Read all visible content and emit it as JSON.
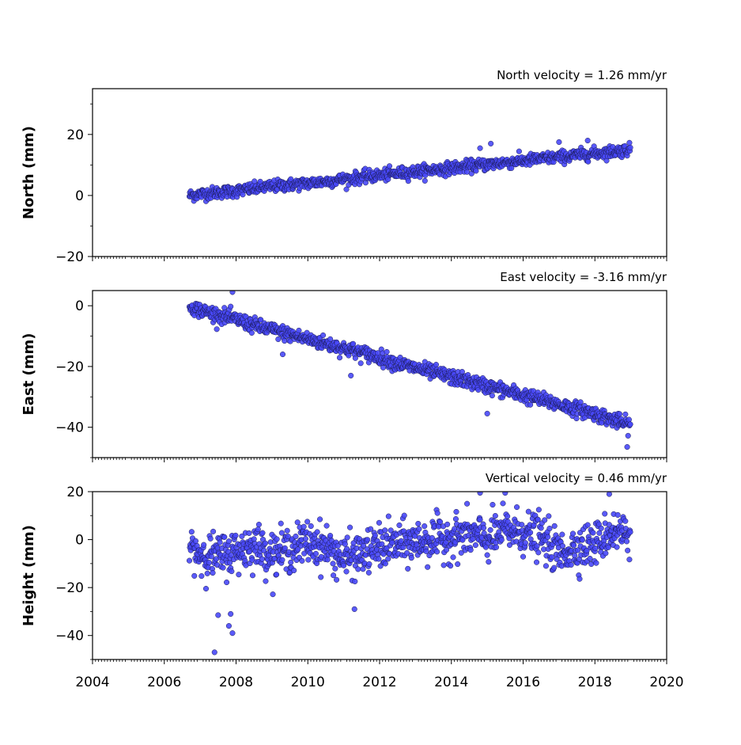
{
  "chart_data": [
    {
      "type": "scatter",
      "title": "North velocity = 1.26 mm/yr",
      "xlabel": "",
      "ylabel": "North (mm)",
      "xlim": [
        2004,
        2020
      ],
      "ylim": [
        -20,
        35
      ],
      "yticks": [
        -20,
        0,
        20
      ],
      "yticks_labels": [
        "−20",
        "0",
        "20"
      ],
      "series": [
        {
          "x": [
            2006.7,
            2007.0,
            2007.5,
            2008.0,
            2008.5,
            2009.0,
            2009.5,
            2010.0,
            2010.5,
            2011.0,
            2011.5,
            2012.0,
            2012.5,
            2013.0,
            2013.5,
            2014.0,
            2014.5,
            2015.0,
            2015.5,
            2016.0,
            2016.5,
            2017.0,
            2017.5,
            2018.0,
            2018.5,
            2019.0
          ],
          "y": [
            0.0,
            0.5,
            1.0,
            1.5,
            2.2,
            3.0,
            3.5,
            4.0,
            4.6,
            5.3,
            6.0,
            6.6,
            7.2,
            7.8,
            8.4,
            9.0,
            9.6,
            10.2,
            10.8,
            11.4,
            12.0,
            12.6,
            13.2,
            13.8,
            14.4,
            15.0
          ],
          "scatter": 1.3
        }
      ],
      "outliers": [
        {
          "x": 2014.8,
          "y": 15.5
        },
        {
          "x": 2015.1,
          "y": 17.0
        },
        {
          "x": 2017.0,
          "y": 17.5
        },
        {
          "x": 2017.8,
          "y": 18.0
        }
      ],
      "color": "#4848f8",
      "edge_color": "#1a1a50",
      "grid": false
    },
    {
      "type": "scatter",
      "title": "East velocity = -3.16 mm/yr",
      "xlabel": "",
      "ylabel": "East (mm)",
      "xlim": [
        2004,
        2020
      ],
      "ylim": [
        -50,
        5
      ],
      "yticks": [
        -40,
        -20,
        0
      ],
      "yticks_labels": [
        "−40",
        "−20",
        "0"
      ],
      "series": [
        {
          "x": [
            2006.7,
            2007.0,
            2007.5,
            2008.0,
            2008.5,
            2009.0,
            2009.5,
            2010.0,
            2010.5,
            2011.0,
            2011.5,
            2012.0,
            2012.5,
            2013.0,
            2013.5,
            2014.0,
            2014.5,
            2015.0,
            2015.5,
            2016.0,
            2016.5,
            2017.0,
            2017.5,
            2018.0,
            2018.5,
            2019.0
          ],
          "y": [
            0.0,
            -1.5,
            -3.0,
            -4.5,
            -6.5,
            -8.0,
            -9.5,
            -11.0,
            -12.5,
            -14.0,
            -15.5,
            -17.0,
            -19.0,
            -20.5,
            -22.0,
            -23.5,
            -25.0,
            -26.5,
            -28.0,
            -29.5,
            -31.0,
            -32.5,
            -34.0,
            -35.5,
            -37.5,
            -39.5
          ],
          "scatter": 1.6
        }
      ],
      "outliers": [
        {
          "x": 2007.9,
          "y": 4.5
        },
        {
          "x": 2009.3,
          "y": -16.0
        },
        {
          "x": 2011.2,
          "y": -23.0
        },
        {
          "x": 2015.0,
          "y": -35.5
        },
        {
          "x": 2018.9,
          "y": -46.5
        }
      ],
      "color": "#4848f8",
      "edge_color": "#1a1a50",
      "grid": false
    },
    {
      "type": "scatter",
      "title": "Vertical velocity = 0.46 mm/yr",
      "xlabel": "",
      "ylabel": "Height (mm)",
      "xlim": [
        2004,
        2020
      ],
      "ylim": [
        -50,
        20
      ],
      "yticks": [
        -40,
        -20,
        0,
        20
      ],
      "yticks_labels": [
        "−40",
        "−20",
        "0",
        "20"
      ],
      "series": [
        {
          "x": [
            2006.7,
            2007.0,
            2007.5,
            2008.0,
            2008.5,
            2009.0,
            2009.5,
            2010.0,
            2010.5,
            2011.0,
            2011.5,
            2012.0,
            2012.5,
            2013.0,
            2013.5,
            2014.0,
            2014.5,
            2015.0,
            2015.5,
            2016.0,
            2016.5,
            2017.0,
            2017.5,
            2018.0,
            2018.5,
            2019.0
          ],
          "y": [
            -3,
            -6,
            -7,
            -5,
            -2,
            -6,
            -4,
            -1,
            -3,
            -8,
            -6,
            -3,
            -2,
            -1,
            0,
            1,
            2,
            0,
            4,
            3,
            1,
            -6,
            -3,
            -2,
            4,
            2
          ],
          "scatter": 6.0
        }
      ],
      "outliers": [
        {
          "x": 2007.4,
          "y": -47.0
        },
        {
          "x": 2007.5,
          "y": -31.5
        },
        {
          "x": 2007.8,
          "y": -36.0
        },
        {
          "x": 2007.9,
          "y": -39.0
        },
        {
          "x": 2007.85,
          "y": -31.0
        },
        {
          "x": 2011.3,
          "y": -29.0
        },
        {
          "x": 2014.8,
          "y": 19.5
        },
        {
          "x": 2015.5,
          "y": 19.5
        },
        {
          "x": 2018.4,
          "y": 19.0
        }
      ],
      "color": "#4848f8",
      "edge_color": "#1a1a50",
      "grid": false
    }
  ],
  "x_axis": {
    "ticks": [
      2004,
      2006,
      2008,
      2010,
      2012,
      2014,
      2016,
      2018,
      2020
    ],
    "tick_labels": [
      "2004",
      "2006",
      "2008",
      "2010",
      "2012",
      "2014",
      "2016",
      "2018",
      "2020"
    ],
    "minor_ticks_per_year": 12
  }
}
